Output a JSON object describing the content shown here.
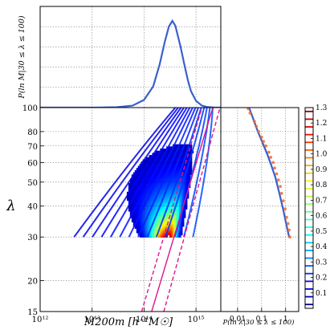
{
  "chart_data": [
    {
      "type": "line",
      "panel": "top-marginal",
      "ylabel": "P(ln M|30 ≤ λ ≤ 100)",
      "xscale": "log",
      "xlim": [
        1000000000000.0,
        3000000000000000.0
      ],
      "grid": true,
      "color": "#3a5fcd",
      "series": [
        {
          "x": [
            1000000000000.0,
            10000000000000.0,
            30000000000000.0,
            60000000000000.0,
            100000000000000.0,
            150000000000000.0,
            200000000000000.0,
            250000000000000.0,
            300000000000000.0,
            350000000000000.0,
            400000000000000.0,
            500000000000000.0,
            600000000000000.0,
            700000000000000.0,
            800000000000000.0,
            1000000000000000.0,
            1300000000000000.0,
            1700000000000000.0,
            2200000000000000.0,
            3000000000000000.0
          ],
          "y": [
            0.0,
            0.0,
            0.004,
            0.02,
            0.08,
            0.22,
            0.45,
            0.68,
            0.84,
            0.9,
            0.85,
            0.64,
            0.44,
            0.28,
            0.17,
            0.07,
            0.02,
            0.005,
            0.001,
            0.0
          ]
        }
      ]
    },
    {
      "type": "heatmap",
      "panel": "main",
      "xlabel": "M200m [h⁻¹M☉]",
      "ylabel": "λ",
      "xscale": "log",
      "yscale": "log",
      "xlim": [
        1000000000000.0,
        3000000000000000.0
      ],
      "ylim": [
        15,
        100
      ],
      "xticks": [
        {
          "v": 1000000000000.0,
          "label": "10¹²"
        },
        {
          "v": 10000000000000.0,
          "label": "10¹³"
        },
        {
          "v": 100000000000000.0,
          "label": "10¹⁴"
        },
        {
          "v": 1000000000000000.0,
          "label": "10¹⁵"
        }
      ],
      "yticks": [
        15,
        20,
        30,
        40,
        50,
        60,
        70,
        80,
        100
      ],
      "grid": true,
      "peak": {
        "mass": 300000000000000.0,
        "lambda": 30
      },
      "relation": {
        "color": "#e0148c",
        "median": [
          {
            "m": 140000000000000.0,
            "l": 15
          },
          {
            "m": 2100000000000000.0,
            "l": 100
          }
        ],
        "lower": [
          {
            "m": 90000000000000.0,
            "l": 15
          },
          {
            "m": 1300000000000000.0,
            "l": 100
          }
        ],
        "upper": [
          {
            "m": 240000000000000.0,
            "l": 15
          },
          {
            "m": 2900000000000000.0,
            "l": 100
          }
        ]
      }
    },
    {
      "type": "scatter",
      "panel": "right-marginal",
      "xlabel": "P(ln λ|30 ≤ λ ≤ 100)",
      "xscale": "log",
      "xlim": [
        0.002,
        3.5
      ],
      "xticks": [
        {
          "v": 0.01,
          "label": "0.01"
        },
        {
          "v": 0.1,
          "label": "0.1"
        },
        {
          "v": 1,
          "label": "1"
        }
      ],
      "grid": true,
      "line_color": "#3a5fcd",
      "point_color": "#f06a2a",
      "line": {
        "p": [
          0.03,
          0.045,
          0.07,
          0.11,
          0.17,
          0.26,
          0.38,
          0.55,
          0.78,
          1.05,
          1.4
        ],
        "lambda": [
          100,
          90,
          80,
          72,
          65,
          58,
          52,
          45,
          39,
          34,
          30
        ]
      },
      "points": {
        "p": [
          0.028,
          0.033,
          0.05,
          0.06,
          0.075,
          0.1,
          0.12,
          0.15,
          0.2,
          0.24,
          0.3,
          0.35,
          0.42,
          0.5,
          0.6,
          0.68,
          0.8,
          0.95,
          1.1,
          1.25,
          1.4,
          1.5
        ],
        "lambda": [
          99,
          95,
          88,
          84,
          80,
          76,
          73,
          70,
          66,
          63,
          60,
          57,
          54,
          51,
          48,
          45,
          42,
          39,
          36,
          34,
          32,
          30
        ]
      }
    },
    {
      "type": "colorbar",
      "panel": "colorbar",
      "range": [
        0,
        1.3
      ],
      "ticks": [
        "0.1",
        "0.2",
        "0.3",
        "0.4",
        "0.5",
        "0.6",
        "0.7",
        "0.8",
        "0.9",
        "1.0",
        "1.1",
        "1.2",
        "1.3"
      ]
    }
  ],
  "labels": {
    "top_ylabel": "P(ln M|30 ≤ λ ≤ 100)",
    "main_ylabel": "λ",
    "main_xlabel": "M200m [h⁻¹M☉]",
    "right_xlabel": "P(ln λ|30 ≤ λ ≤ 100)"
  }
}
